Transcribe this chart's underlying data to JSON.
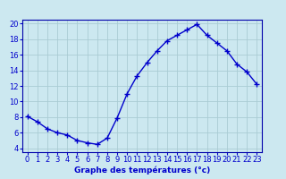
{
  "hours": [
    0,
    1,
    2,
    3,
    4,
    5,
    6,
    7,
    8,
    9,
    10,
    11,
    12,
    13,
    14,
    15,
    16,
    17,
    18,
    19,
    20,
    21,
    22,
    23
  ],
  "temps": [
    8.1,
    7.4,
    6.5,
    6.0,
    5.7,
    5.0,
    4.7,
    4.5,
    5.3,
    7.9,
    11.0,
    13.3,
    15.0,
    16.5,
    17.8,
    18.5,
    19.2,
    19.9,
    18.5,
    17.5,
    16.5,
    14.8,
    13.8,
    12.2
  ],
  "line_color": "#0000cc",
  "marker": "+",
  "bg_color": "#cce8f0",
  "grid_color": "#aaccd4",
  "xlabel": "Graphe des températures (°c)",
  "ylabel_ticks": [
    4,
    6,
    8,
    10,
    12,
    14,
    16,
    18,
    20
  ],
  "xlim": [
    -0.5,
    23.5
  ],
  "ylim": [
    3.5,
    20.5
  ],
  "label_color": "#0000cc",
  "tick_color": "#0000cc",
  "border_color": "#0000aa",
  "xlabel_fontsize": 6.5,
  "tick_fontsize": 6.0,
  "markersize": 4,
  "linewidth": 1.0
}
